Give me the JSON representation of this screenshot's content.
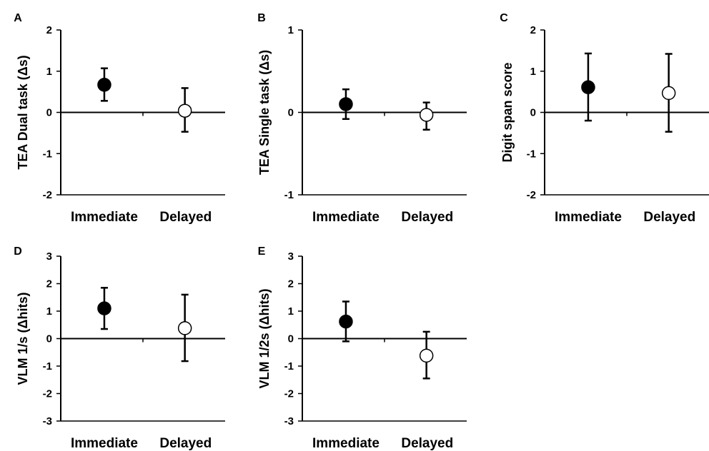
{
  "chart_data": [
    {
      "panel": "A",
      "type": "scatter",
      "ylabel": "TEA Dual task (Δs)",
      "categories": [
        "Immediate",
        "Delayed"
      ],
      "ylim": [
        -2,
        2
      ],
      "yticks": [
        2,
        1,
        0,
        -1,
        -2
      ],
      "points": [
        {
          "category": "Immediate",
          "value": 0.67,
          "low": 0.28,
          "high": 1.07,
          "fill": "#000000"
        },
        {
          "category": "Delayed",
          "value": 0.04,
          "low": -0.47,
          "high": 0.59,
          "fill": "#ffffff"
        }
      ]
    },
    {
      "panel": "B",
      "type": "scatter",
      "ylabel": "TEA Single task (Δs)",
      "categories": [
        "Immediate",
        "Delayed"
      ],
      "ylim": [
        -1,
        1
      ],
      "yticks": [
        1,
        0,
        -1
      ],
      "points": [
        {
          "category": "Immediate",
          "value": 0.1,
          "low": -0.08,
          "high": 0.28,
          "fill": "#000000"
        },
        {
          "category": "Delayed",
          "value": -0.03,
          "low": -0.21,
          "high": 0.12,
          "fill": "#ffffff"
        }
      ]
    },
    {
      "panel": "C",
      "type": "scatter",
      "ylabel": "Digit span score",
      "categories": [
        "Immediate",
        "Delayed"
      ],
      "ylim": [
        -2,
        2
      ],
      "yticks": [
        2,
        1,
        0,
        -1,
        -2
      ],
      "points": [
        {
          "category": "Immediate",
          "value": 0.61,
          "low": -0.2,
          "high": 1.43,
          "fill": "#000000"
        },
        {
          "category": "Delayed",
          "value": 0.47,
          "low": -0.47,
          "high": 1.42,
          "fill": "#ffffff"
        }
      ]
    },
    {
      "panel": "D",
      "type": "scatter",
      "ylabel": "VLM 1/s  (Δhits)",
      "categories": [
        "Immediate",
        "Delayed"
      ],
      "ylim": [
        -3,
        3
      ],
      "yticks": [
        3,
        2,
        1,
        0,
        -1,
        -2,
        -3
      ],
      "points": [
        {
          "category": "Immediate",
          "value": 1.1,
          "low": 0.35,
          "high": 1.85,
          "fill": "#000000"
        },
        {
          "category": "Delayed",
          "value": 0.38,
          "low": -0.82,
          "high": 1.6,
          "fill": "#ffffff"
        }
      ]
    },
    {
      "panel": "E",
      "type": "scatter",
      "ylabel": "VLM 1/2s  (Δhits)",
      "categories": [
        "Immediate",
        "Delayed"
      ],
      "ylim": [
        -3,
        3
      ],
      "yticks": [
        3,
        2,
        1,
        0,
        -1,
        -2,
        -3
      ],
      "points": [
        {
          "category": "Immediate",
          "value": 0.62,
          "low": -0.1,
          "high": 1.35,
          "fill": "#000000"
        },
        {
          "category": "Delayed",
          "value": -0.62,
          "low": -1.45,
          "high": 0.25,
          "fill": "#ffffff"
        }
      ]
    }
  ]
}
